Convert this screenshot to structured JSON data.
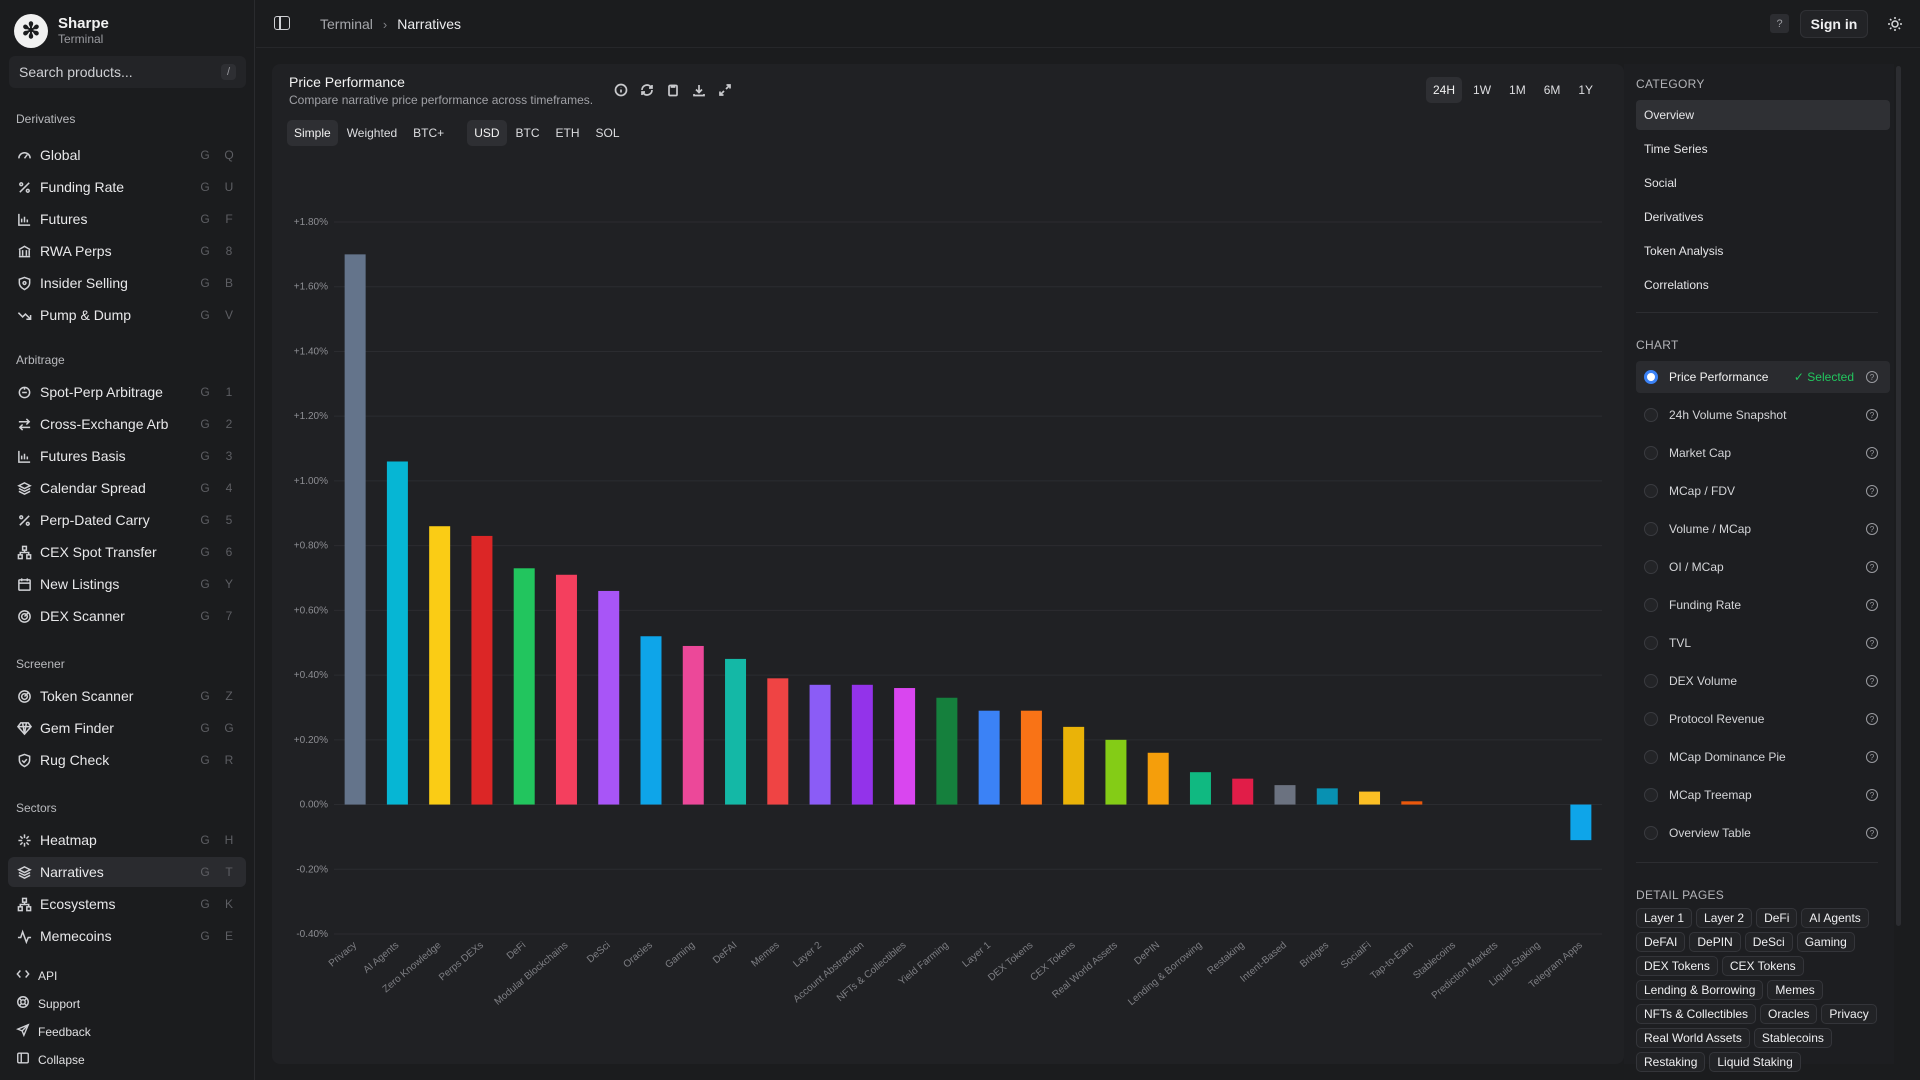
{
  "brand": {
    "name": "Sharpe",
    "sub": "Terminal"
  },
  "search": {
    "placeholder": "Search products...",
    "shortcut": "/"
  },
  "sidebar": {
    "sections": [
      {
        "title": "Derivatives",
        "items": [
          {
            "label": "Global",
            "keys": [
              "G",
              "Q"
            ],
            "icon": "gauge-icon"
          },
          {
            "label": "Funding Rate",
            "keys": [
              "G",
              "U"
            ],
            "icon": "percent-icon"
          },
          {
            "label": "Futures",
            "keys": [
              "G",
              "F"
            ],
            "icon": "bar-chart-icon"
          },
          {
            "label": "RWA Perps",
            "keys": [
              "G",
              "8"
            ],
            "icon": "bank-icon"
          },
          {
            "label": "Insider Selling",
            "keys": [
              "G",
              "B"
            ],
            "icon": "shield-icon"
          },
          {
            "label": "Pump & Dump",
            "keys": [
              "G",
              "V"
            ],
            "icon": "trend-down-icon"
          }
        ]
      },
      {
        "title": "Arbitrage",
        "items": [
          {
            "label": "Spot-Perp Arbitrage",
            "keys": [
              "G",
              "1"
            ],
            "icon": "repeat-icon"
          },
          {
            "label": "Cross-Exchange Arb",
            "keys": [
              "G",
              "2"
            ],
            "icon": "arrows-icon"
          },
          {
            "label": "Futures Basis",
            "keys": [
              "G",
              "3"
            ],
            "icon": "bar-chart-icon"
          },
          {
            "label": "Calendar Spread",
            "keys": [
              "G",
              "4"
            ],
            "icon": "layers-icon"
          },
          {
            "label": "Perp-Dated Carry",
            "keys": [
              "G",
              "5"
            ],
            "icon": "percent-icon"
          },
          {
            "label": "CEX Spot Transfer",
            "keys": [
              "G",
              "6"
            ],
            "icon": "network-icon"
          },
          {
            "label": "New Listings",
            "keys": [
              "G",
              "Y"
            ],
            "icon": "calendar-icon"
          },
          {
            "label": "DEX Scanner",
            "keys": [
              "G",
              "7"
            ],
            "icon": "radar-icon"
          }
        ]
      },
      {
        "title": "Screener",
        "items": [
          {
            "label": "Token Scanner",
            "keys": [
              "G",
              "Z"
            ],
            "icon": "radar-icon"
          },
          {
            "label": "Gem Finder",
            "keys": [
              "G",
              "G"
            ],
            "icon": "gem-icon"
          },
          {
            "label": "Rug Check",
            "keys": [
              "G",
              "R"
            ],
            "icon": "shield-check-icon"
          }
        ]
      },
      {
        "title": "Sectors",
        "items": [
          {
            "label": "Heatmap",
            "keys": [
              "G",
              "H"
            ],
            "icon": "sparkle-icon"
          },
          {
            "label": "Narratives",
            "keys": [
              "G",
              "T"
            ],
            "icon": "layers-icon"
          },
          {
            "label": "Ecosystems",
            "keys": [
              "G",
              "K"
            ],
            "icon": "network-icon"
          },
          {
            "label": "Memecoins",
            "keys": [
              "G",
              "E"
            ],
            "icon": "pulse-icon"
          }
        ]
      }
    ],
    "footer": [
      "API",
      "Support",
      "Feedback",
      "Collapse"
    ]
  },
  "topbar": {
    "crumb1": "Terminal",
    "crumb2": "Narratives",
    "help": "?",
    "signin": "Sign in"
  },
  "card": {
    "title": "Price Performance",
    "subtitle": "Compare narrative price performance across timeframes.",
    "timeframes": [
      "24H",
      "1W",
      "1M",
      "6M",
      "1Y"
    ],
    "active_timeframe": "24H",
    "weights": [
      "Simple",
      "Weighted",
      "BTC+"
    ],
    "active_weight": "Simple",
    "currencies": [
      "USD",
      "BTC",
      "ETH",
      "SOL"
    ],
    "active_currency": "USD"
  },
  "chart_data": {
    "type": "bar",
    "categories": [
      "Privacy",
      "AI Agents",
      "Zero Knowledge",
      "Perps DEXs",
      "DeFi",
      "Modular Blockchains",
      "DeSci",
      "Oracles",
      "Gaming",
      "DeFAI",
      "Memes",
      "Layer 2",
      "Account Abstraction",
      "NFTs & Collectibles",
      "Yield Farming",
      "Layer 1",
      "DEX Tokens",
      "CEX Tokens",
      "Real World Assets",
      "DePIN",
      "Lending & Borrowing",
      "Restaking",
      "Intent-Based",
      "Bridges",
      "SocialFi",
      "Tap-to-Earn",
      "Stablecoins",
      "Prediction Markets",
      "Liquid Staking",
      "Telegram Apps"
    ],
    "values": [
      1.7,
      1.06,
      0.86,
      0.83,
      0.73,
      0.71,
      0.66,
      0.52,
      0.49,
      0.45,
      0.39,
      0.37,
      0.37,
      0.36,
      0.33,
      0.29,
      0.29,
      0.24,
      0.2,
      0.16,
      0.1,
      0.08,
      0.06,
      0.05,
      0.04,
      0.01,
      0.0,
      0.0,
      0.0,
      -0.11
    ],
    "colors": [
      "#64748b",
      "#06b6d4",
      "#facc15",
      "#dc2626",
      "#22c55e",
      "#f43f5e",
      "#a855f7",
      "#0ea5e9",
      "#ec4899",
      "#14b8a6",
      "#ef4444",
      "#8b5cf6",
      "#9333ea",
      "#d946ef",
      "#15803d",
      "#3b82f6",
      "#f97316",
      "#eab308",
      "#84cc16",
      "#f59e0b",
      "#10b981",
      "#e11d48",
      "#6b7280",
      "#0891b2",
      "#fbbf24",
      "#ea580c",
      "#6b7280",
      "#6b7280",
      "#6b7280",
      "#0ea5e9"
    ],
    "yticks": [
      "+1.80%",
      "+1.60%",
      "+1.40%",
      "+1.20%",
      "+1.00%",
      "+0.80%",
      "+0.60%",
      "+0.40%",
      "+0.20%",
      "0.00%",
      "-0.20%",
      "-0.40%"
    ],
    "ylim": [
      -0.4,
      1.8
    ],
    "title": "Price Performance",
    "xlabel": "",
    "ylabel": ""
  },
  "rpanel": {
    "category_title": "CATEGORY",
    "categories": [
      "Overview",
      "Time Series",
      "Social",
      "Derivatives",
      "Token Analysis",
      "Correlations"
    ],
    "active_category": "Overview",
    "chart_title": "CHART",
    "charts": [
      "Price Performance",
      "24h Volume Snapshot",
      "Market Cap",
      "MCap / FDV",
      "Volume / MCap",
      "OI / MCap",
      "Funding Rate",
      "TVL",
      "DEX Volume",
      "Protocol Revenue",
      "MCap Dominance Pie",
      "MCap Treemap",
      "Overview Table"
    ],
    "selected_label": "✓ Selected",
    "detail_title": "DETAIL PAGES",
    "detail_chips": [
      "Layer 1",
      "Layer 2",
      "DeFi",
      "AI Agents",
      "DeFAI",
      "DePIN",
      "DeSci",
      "Gaming",
      "DEX Tokens",
      "CEX Tokens",
      "Lending & Borrowing",
      "Memes",
      "NFTs & Collectibles",
      "Oracles",
      "Privacy",
      "Real World Assets",
      "Stablecoins",
      "Restaking",
      "Liquid Staking"
    ]
  }
}
